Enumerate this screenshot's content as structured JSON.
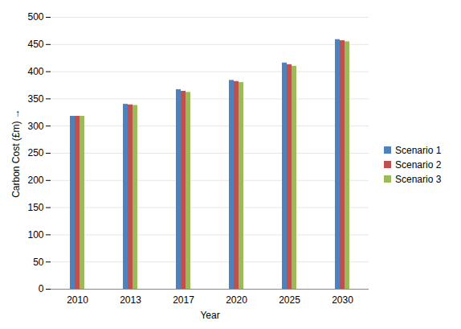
{
  "chart_data": {
    "type": "bar",
    "categories": [
      "2010",
      "2013",
      "2017",
      "2020",
      "2025",
      "2030"
    ],
    "series": [
      {
        "name": "Scenario 1",
        "color": "#4f81bd",
        "values": [
          318,
          340,
          367,
          384,
          416,
          459
        ]
      },
      {
        "name": "Scenario 2",
        "color": "#c0504d",
        "values": [
          318,
          339,
          364,
          382,
          413,
          457
        ]
      },
      {
        "name": "Scenario 3",
        "color": "#9bbb59",
        "values": [
          318,
          338,
          362,
          380,
          410,
          455
        ]
      }
    ],
    "x_label": "Year",
    "y_label": "Carbon Cost (£m)",
    "ylim": [
      0,
      500
    ],
    "yticks": [
      0,
      50,
      100,
      150,
      200,
      250,
      300,
      350,
      400,
      450,
      500
    ],
    "grid": true,
    "legend": "right"
  }
}
